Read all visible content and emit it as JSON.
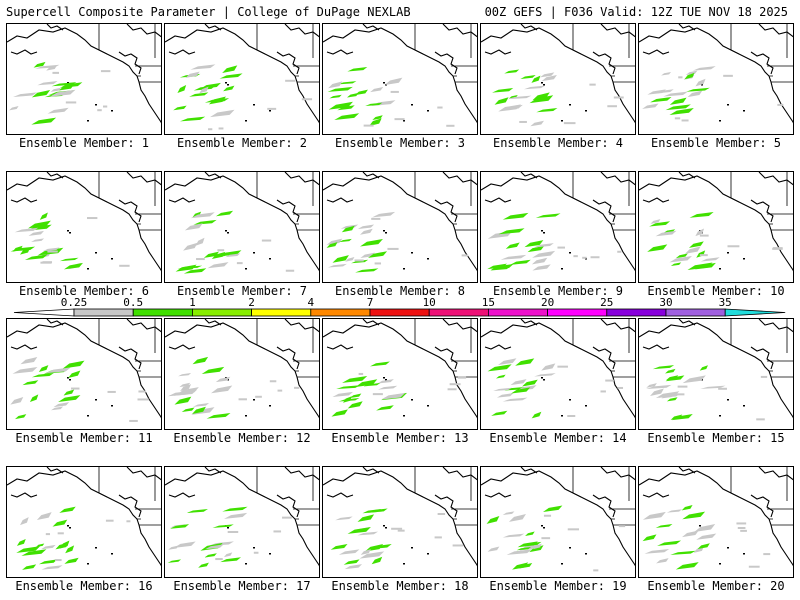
{
  "header": {
    "left_title": "Supercell Composite Parameter | College of DuPage NEXLAB",
    "right_title": "00Z GEFS | F036 Valid: 12Z TUE NOV 18 2025"
  },
  "member_label_prefix": "Ensemble Member:",
  "members": [
    1,
    2,
    3,
    4,
    5,
    6,
    7,
    8,
    9,
    10,
    11,
    12,
    13,
    14,
    15,
    16,
    17,
    18,
    19,
    20
  ],
  "legend": {
    "ticks": [
      "0.25",
      "0.5",
      "1",
      "2",
      "4",
      "7",
      "10",
      "15",
      "20",
      "25",
      "30",
      "35"
    ],
    "colors": [
      "#c8c8c8",
      "#40e000",
      "#88ee00",
      "#ffff00",
      "#ff8800",
      "#ee1111",
      "#ee1177",
      "#ee11cc",
      "#ff00ff",
      "#8800dd",
      "#a060e0",
      "#22dddd"
    ]
  },
  "map_colors": {
    "low": "#c8c8c8",
    "mid": "#40e000"
  }
}
